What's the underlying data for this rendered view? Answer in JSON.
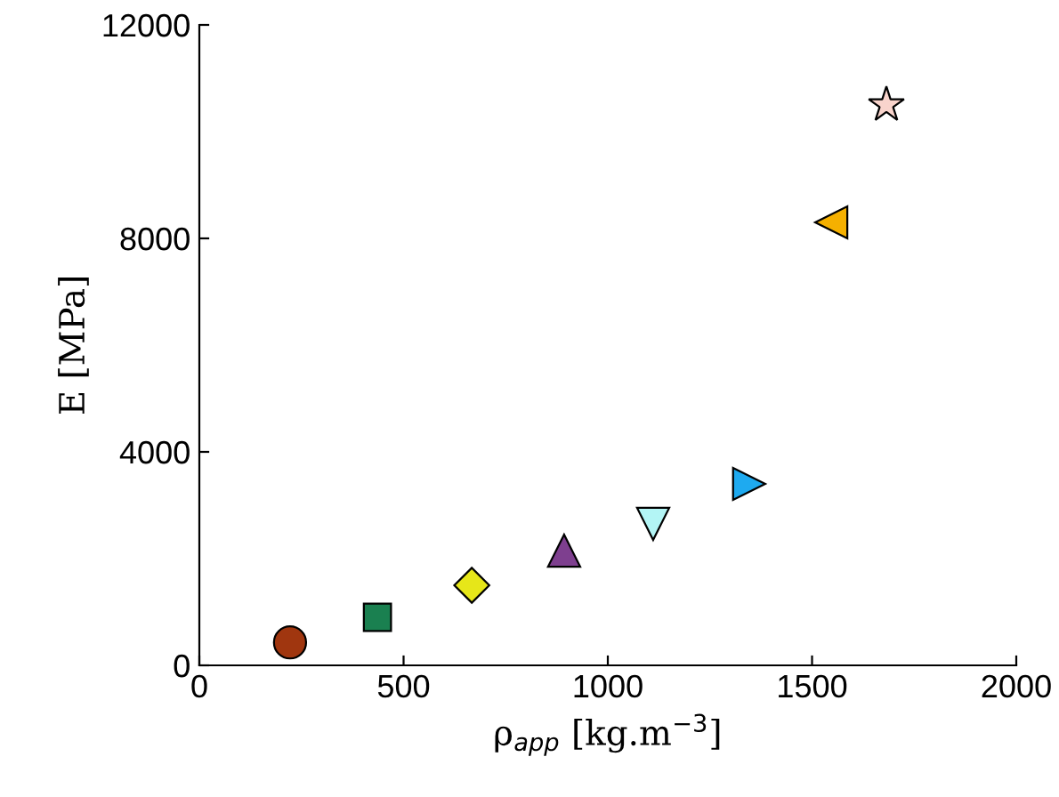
{
  "chart_data": {
    "type": "scatter",
    "xlabel": "ρ$_{app}$ [kg.m$^{−3}$]",
    "ylabel": "E [MPa]",
    "xlim": [
      0,
      2000
    ],
    "xticks": [
      0,
      500,
      1000,
      1500,
      2000
    ],
    "ylim": [
      0,
      12000
    ],
    "yticks": [
      0,
      4000,
      8000,
      12000
    ],
    "grid": false,
    "legend": false,
    "series": [
      {
        "x": [
          222
        ],
        "values": [
          430
        ],
        "color": "#a0360f",
        "marker": "circle"
      },
      {
        "x": [
          436
        ],
        "values": [
          900
        ],
        "color": "#1a8050",
        "marker": "square"
      },
      {
        "x": [
          667
        ],
        "values": [
          1500
        ],
        "color": "#e6e619",
        "marker": "diamond"
      },
      {
        "x": [
          893
        ],
        "values": [
          2150
        ],
        "color": "#7e3f8f",
        "marker": "triangle-up"
      },
      {
        "x": [
          1111
        ],
        "values": [
          2650
        ],
        "color": "#b3f5f5",
        "marker": "triangle-down"
      },
      {
        "x": [
          1346
        ],
        "values": [
          3400
        ],
        "color": "#1eaaf0",
        "marker": "triangle-right"
      },
      {
        "x": [
          1547
        ],
        "values": [
          8300
        ],
        "color": "#f5b000",
        "marker": "triangle-left"
      },
      {
        "x": [
          1682
        ],
        "values": [
          10500
        ],
        "color": "#f9d4cc",
        "marker": "star"
      }
    ]
  }
}
